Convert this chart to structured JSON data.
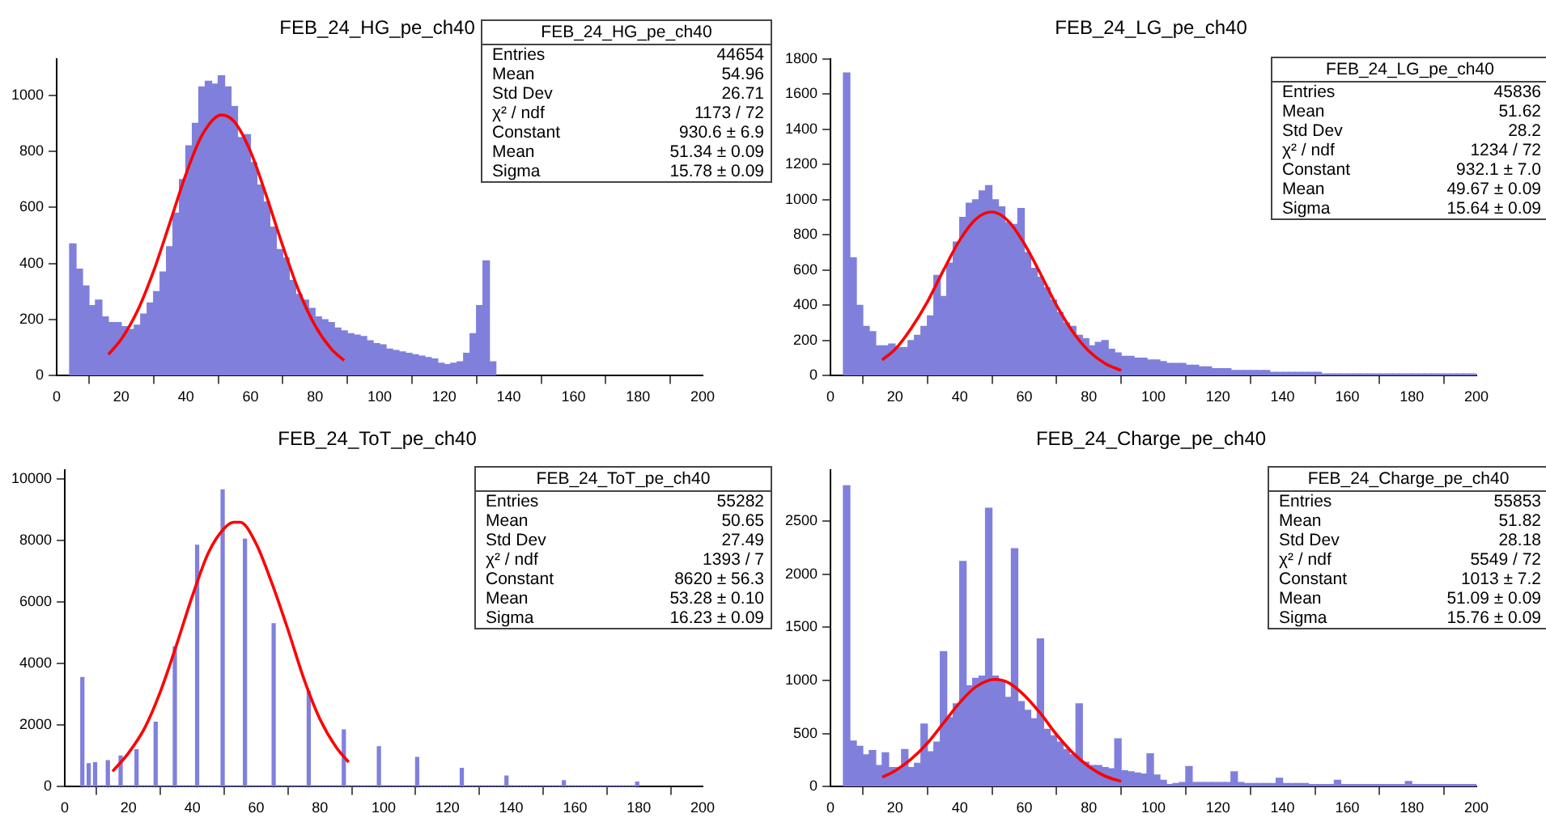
{
  "chart_data": [
    {
      "type": "histogram",
      "title": "FEB_24_HG_pe_ch40",
      "xlim": [
        0,
        200
      ],
      "xticks": [
        0,
        20,
        40,
        60,
        80,
        100,
        120,
        140,
        160,
        180,
        200
      ],
      "ylim": [
        0,
        1130
      ],
      "yticks": [
        0,
        200,
        400,
        600,
        800,
        1000
      ],
      "grid": false,
      "legend": false,
      "bins": [
        4,
        6,
        8,
        10,
        12,
        14,
        16,
        18,
        20,
        22,
        24,
        26,
        28,
        30,
        32,
        34,
        36,
        38,
        40,
        42,
        44,
        46,
        48,
        50,
        52,
        54,
        56,
        58,
        60,
        62,
        64,
        66,
        68,
        70,
        72,
        74,
        76,
        78,
        80,
        82,
        84,
        86,
        88,
        90,
        92,
        94,
        96,
        98,
        100,
        102,
        104,
        106,
        108,
        110,
        112,
        114,
        116,
        118,
        120,
        122,
        124,
        126,
        128,
        130,
        132,
        134,
        136
      ],
      "series": [
        {
          "color": "#8080dc",
          "values": [
            470,
            380,
            320,
            250,
            270,
            210,
            190,
            190,
            175,
            165,
            180,
            220,
            260,
            300,
            370,
            460,
            580,
            700,
            820,
            900,
            1030,
            1050,
            1040,
            1070,
            1030,
            960,
            850,
            860,
            760,
            680,
            620,
            530,
            450,
            420,
            340,
            290,
            270,
            240,
            210,
            200,
            190,
            170,
            160,
            150,
            145,
            140,
            125,
            115,
            110,
            95,
            90,
            85,
            80,
            75,
            70,
            65,
            60,
            45,
            40,
            45,
            50,
            80,
            150,
            250,
            410,
            50
          ]
        },
        {
          "type": "line",
          "color": "#ff0000",
          "x": [
            16,
            20,
            25,
            30,
            35,
            40,
            45,
            51,
            55,
            60,
            65,
            70,
            75,
            80,
            85,
            89
          ],
          "values": [
            76,
            130,
            231,
            373,
            544,
            718,
            858,
            930,
            906,
            800,
            639,
            463,
            302,
            179,
            96,
            54
          ]
        }
      ],
      "annotations": [
        "FEB_24_HG_pe_ch40",
        "Entries",
        "44654",
        "Mean",
        "54.96",
        "Std Dev",
        "26.71",
        "χ² / ndf",
        "1173 / 72",
        "Constant",
        "930.6 ± 6.9",
        "Mean",
        "51.34 ± 0.09",
        "Sigma",
        "15.78 ± 0.09"
      ]
    },
    {
      "type": "histogram",
      "title": "FEB_24_LG_pe_ch40",
      "xlim": [
        0,
        200
      ],
      "xticks": [
        0,
        20,
        40,
        60,
        80,
        100,
        120,
        140,
        160,
        180,
        200
      ],
      "ylim": [
        0,
        1800
      ],
      "yticks": [
        0,
        200,
        400,
        600,
        800,
        1000,
        1200,
        1400,
        1600,
        1800
      ],
      "grid": false,
      "legend": false,
      "bins": [
        4,
        6,
        8,
        10,
        12,
        14,
        16,
        18,
        20,
        22,
        24,
        26,
        28,
        30,
        32,
        34,
        36,
        38,
        40,
        42,
        44,
        46,
        48,
        50,
        52,
        54,
        56,
        58,
        60,
        62,
        64,
        66,
        68,
        70,
        72,
        74,
        76,
        78,
        80,
        82,
        84,
        86,
        88,
        90,
        92,
        94,
        96,
        98,
        100,
        102,
        104,
        106,
        108,
        110,
        112,
        114,
        116,
        118,
        120,
        122,
        124,
        126,
        128,
        130,
        132,
        134,
        136,
        138,
        140,
        142,
        144,
        146,
        148,
        150,
        152,
        154,
        156,
        158,
        160,
        162,
        164,
        166,
        168,
        170,
        172,
        174,
        176,
        178,
        180,
        182,
        184,
        186,
        188,
        190,
        192,
        194,
        196,
        198,
        200
      ],
      "series": [
        {
          "color": "#8080dc",
          "values": [
            1720,
            670,
            400,
            280,
            250,
            170,
            170,
            180,
            160,
            160,
            200,
            230,
            280,
            340,
            570,
            450,
            640,
            760,
            900,
            980,
            1000,
            1050,
            1080,
            1000,
            960,
            870,
            860,
            950,
            700,
            610,
            560,
            500,
            430,
            360,
            300,
            280,
            230,
            210,
            170,
            190,
            200,
            150,
            130,
            110,
            110,
            100,
            100,
            90,
            90,
            80,
            70,
            70,
            70,
            60,
            60,
            50,
            50,
            40,
            40,
            40,
            30,
            30,
            30,
            30,
            30,
            30,
            20,
            20,
            20,
            20,
            20,
            20,
            20,
            20,
            10,
            10,
            10,
            10,
            10,
            10,
            10,
            10,
            10,
            10,
            10,
            10,
            10,
            10,
            10,
            10,
            10,
            10,
            10,
            10,
            10,
            10,
            10,
            10
          ]
        },
        {
          "type": "line",
          "color": "#ff0000",
          "x": [
            16,
            20,
            25,
            30,
            35,
            40,
            45,
            50,
            55,
            60,
            65,
            70,
            75,
            80,
            85,
            90
          ],
          "values": [
            90,
            150,
            270,
            420,
            600,
            770,
            890,
            930,
            880,
            750,
            580,
            400,
            250,
            140,
            70,
            30
          ]
        }
      ],
      "annotations": [
        "FEB_24_LG_pe_ch40",
        "Entries",
        "45836",
        "Mean",
        "51.62",
        "Std Dev",
        "28.2",
        "χ² / ndf",
        "1234 / 72",
        "Constant",
        "932.1 ± 7.0",
        "Mean",
        "49.67 ± 0.09",
        "Sigma",
        "15.64 ± 0.09"
      ]
    },
    {
      "type": "histogram",
      "title": "FEB_24_ToT_pe_ch40",
      "xlim": [
        0,
        200
      ],
      "xticks": [
        0,
        20,
        40,
        60,
        80,
        100,
        120,
        140,
        160,
        180,
        200
      ],
      "ylim": [
        0,
        10300
      ],
      "yticks": [
        0,
        2000,
        4000,
        6000,
        8000,
        10000
      ],
      "grid": false,
      "legend": false,
      "bins": [
        5,
        6,
        7,
        8,
        9,
        10,
        11,
        12,
        13,
        14,
        15,
        16,
        17,
        18,
        19,
        20,
        21,
        22,
        23,
        24,
        25,
        26,
        27,
        28,
        29,
        30,
        31,
        32,
        33,
        34,
        35,
        36,
        37,
        38,
        39,
        40,
        41,
        42,
        43,
        44,
        45,
        46,
        47,
        48,
        49,
        50,
        51,
        52,
        53,
        54,
        55,
        56,
        57,
        58,
        59,
        60,
        61,
        62,
        63,
        64,
        65,
        66,
        67,
        68,
        69,
        70,
        71,
        72,
        73,
        74,
        75,
        76,
        77,
        78,
        79,
        80,
        81,
        82,
        83,
        84,
        85,
        86,
        87,
        88,
        89,
        90,
        91,
        92,
        93,
        94,
        95,
        96,
        97,
        98,
        99,
        100,
        101,
        102,
        103,
        104,
        105,
        106,
        107,
        108,
        109,
        110,
        111,
        112,
        113,
        114,
        115,
        116,
        117,
        118,
        119,
        120,
        121,
        122,
        123,
        124,
        125,
        126,
        127,
        128,
        129,
        130,
        131,
        132,
        133,
        134,
        135,
        136,
        137,
        138,
        139,
        140,
        141,
        142,
        143,
        144,
        145,
        146,
        147,
        148,
        149,
        150,
        151,
        152,
        153,
        154,
        155,
        156,
        157,
        158,
        159,
        160,
        161,
        162,
        163,
        164,
        165,
        166,
        167,
        168,
        169,
        170,
        171,
        172,
        173,
        174,
        175,
        176,
        177,
        178,
        179,
        180
      ],
      "series": [
        {
          "color": "#8080dc",
          "values": [
            3550,
            0,
            750,
            0,
            780,
            0,
            0,
            0,
            850,
            0,
            0,
            0,
            1000,
            0,
            0,
            0,
            0,
            1200,
            0,
            0,
            0,
            0,
            0,
            2100,
            0,
            0,
            0,
            0,
            0,
            4550,
            0,
            0,
            0,
            0,
            0,
            0,
            7850,
            0,
            0,
            0,
            0,
            0,
            0,
            0,
            9650,
            0,
            0,
            0,
            0,
            0,
            0,
            8050,
            0,
            0,
            0,
            0,
            0,
            0,
            0,
            0,
            5300,
            0,
            0,
            0,
            0,
            0,
            0,
            0,
            0,
            0,
            0,
            3100,
            0,
            0,
            0,
            0,
            0,
            0,
            0,
            0,
            0,
            0,
            1850,
            0,
            0,
            0,
            0,
            0,
            0,
            0,
            0,
            0,
            0,
            1300,
            0,
            0,
            0,
            0,
            0,
            0,
            0,
            0,
            0,
            0,
            0,
            950,
            0,
            0,
            0,
            0,
            0,
            0,
            0,
            0,
            0,
            0,
            0,
            0,
            0,
            600,
            0,
            0,
            0,
            0,
            0,
            0,
            0,
            0,
            0,
            0,
            0,
            0,
            0,
            350,
            0,
            0,
            0,
            0,
            0,
            0,
            0,
            0,
            0,
            0,
            0,
            0,
            0,
            0,
            0,
            0,
            0,
            200,
            0,
            0,
            0,
            0,
            0,
            0,
            0,
            0,
            0,
            0,
            0,
            0,
            0,
            0,
            0,
            0,
            0,
            0,
            0,
            0,
            0,
            0,
            150
          ]
        },
        {
          "type": "line",
          "color": "#ff0000",
          "x": [
            15,
            20,
            25,
            30,
            35,
            40,
            45,
            50,
            53,
            55,
            60,
            65,
            70,
            75,
            80,
            85,
            89
          ],
          "values": [
            500,
            1100,
            1900,
            3100,
            4600,
            6200,
            7600,
            8400,
            8600,
            8600,
            7900,
            6600,
            5100,
            3500,
            2200,
            1300,
            800
          ]
        }
      ],
      "annotations": [
        "FEB_24_ToT_pe_ch40",
        "Entries",
        "55282",
        "Mean",
        "50.65",
        "Std Dev",
        "27.49",
        "χ² / ndf",
        "1393 / 7",
        "Constant",
        "8620 ± 56.3",
        "Mean",
        "53.28 ± 0.10",
        "Sigma",
        "16.23 ± 0.09"
      ]
    },
    {
      "type": "histogram",
      "title": "FEB_24_Charge_pe_ch40",
      "xlim": [
        0,
        200
      ],
      "xticks": [
        0,
        20,
        40,
        60,
        80,
        100,
        120,
        140,
        160,
        180,
        200
      ],
      "ylim": [
        0,
        2980
      ],
      "yticks": [
        0,
        500,
        1000,
        1500,
        2000,
        2500
      ],
      "grid": false,
      "legend": false,
      "bins": [
        4,
        6,
        8,
        10,
        12,
        14,
        16,
        18,
        20,
        22,
        24,
        26,
        28,
        30,
        32,
        34,
        36,
        38,
        40,
        42,
        44,
        46,
        48,
        50,
        52,
        54,
        56,
        58,
        60,
        62,
        64,
        66,
        68,
        70,
        72,
        74,
        76,
        78,
        80,
        82,
        84,
        86,
        88,
        90,
        92,
        94,
        96,
        98,
        100,
        102,
        104,
        106,
        108,
        110,
        112,
        114,
        116,
        118,
        120,
        122,
        124,
        126,
        128,
        130,
        132,
        134,
        136,
        138,
        140,
        142,
        144,
        146,
        148,
        150,
        152,
        154,
        156,
        158,
        160,
        162,
        164,
        166,
        168,
        170,
        172,
        174,
        176,
        178,
        180,
        182,
        184,
        186,
        188,
        190,
        192,
        194,
        196,
        198,
        200
      ],
      "series": [
        {
          "color": "#8080dc",
          "values": [
            2830,
            430,
            380,
            300,
            340,
            200,
            320,
            180,
            180,
            350,
            180,
            220,
            590,
            330,
            420,
            1270,
            650,
            780,
            2120,
            950,
            1020,
            1040,
            2620,
            1040,
            1000,
            840,
            2240,
            800,
            720,
            640,
            1390,
            540,
            480,
            420,
            350,
            300,
            780,
            230,
            200,
            200,
            180,
            170,
            450,
            150,
            140,
            130,
            120,
            310,
            110,
            60,
            20,
            30,
            40,
            190,
            40,
            40,
            40,
            40,
            40,
            40,
            140,
            40,
            30,
            30,
            30,
            30,
            30,
            80,
            30,
            30,
            30,
            30,
            20,
            20,
            20,
            20,
            60,
            20,
            20,
            20,
            20,
            20,
            20,
            20,
            20,
            20,
            20,
            50,
            20,
            20,
            20,
            20,
            20,
            20,
            20,
            20,
            20,
            20
          ]
        },
        {
          "type": "line",
          "color": "#ff0000",
          "x": [
            16,
            20,
            25,
            30,
            35,
            40,
            45,
            51,
            55,
            60,
            65,
            70,
            75,
            80,
            85,
            90
          ],
          "values": [
            90,
            150,
            260,
            410,
            600,
            790,
            940,
            1010,
            980,
            860,
            690,
            490,
            320,
            190,
            100,
            50
          ]
        }
      ],
      "annotations": [
        "FEB_24_Charge_pe_ch40",
        "Entries",
        "55853",
        "Mean",
        "51.82",
        "Std Dev",
        "28.18",
        "χ² / ndf",
        "5549 / 72",
        "Constant",
        "1013 ± 7.2",
        "Mean",
        "51.09 ± 0.09",
        "Sigma",
        "15.76 ± 0.09"
      ]
    }
  ]
}
